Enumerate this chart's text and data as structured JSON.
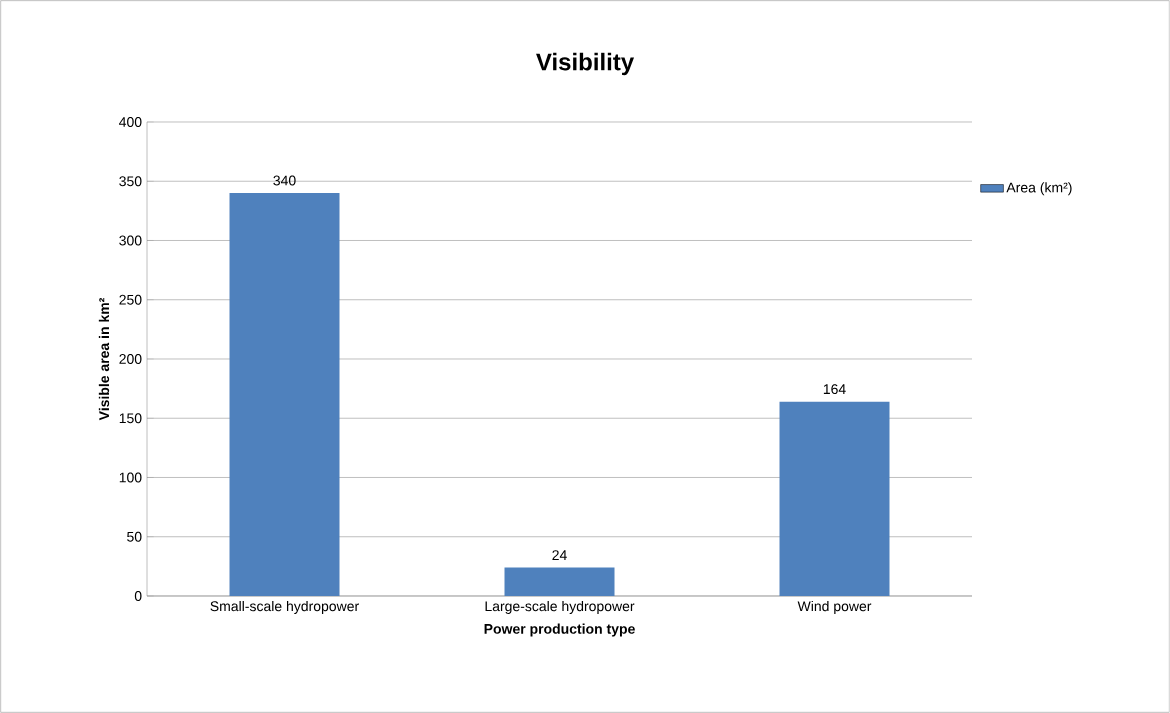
{
  "chart_data": {
    "type": "bar",
    "title": "Visibility",
    "xlabel": "Power production type",
    "ylabel": "Visible area in km²",
    "categories": [
      "Small-scale hydropower",
      "Large-scale hydropower",
      "Wind power"
    ],
    "series": [
      {
        "name": "Area (km²)",
        "color": "#4f81bd",
        "values": [
          340,
          24,
          164
        ]
      }
    ],
    "ylim": [
      0,
      400
    ],
    "yticks": [
      0,
      50,
      100,
      150,
      200,
      250,
      300,
      350,
      400
    ],
    "grid": "y",
    "legend": "right",
    "data_labels": true
  }
}
